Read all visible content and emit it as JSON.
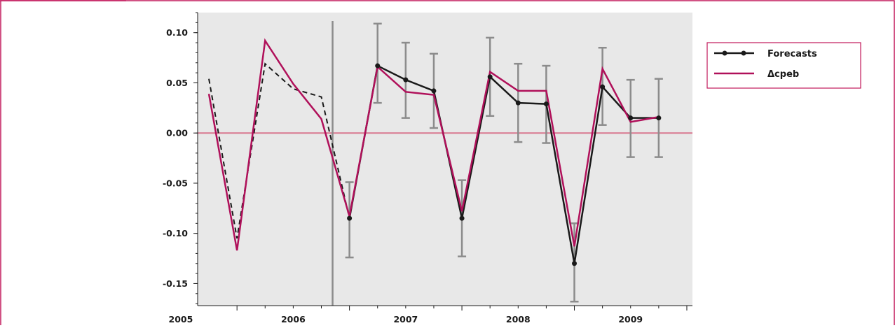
{
  "colors": {
    "frame": "#c2185b",
    "plot_bg": "#e8e8e8",
    "zero_line": "#d9788f",
    "forecast": "#1a1a1a",
    "actual": "#b0105a",
    "error_bar": "#8c8c8c"
  },
  "chart_data": {
    "type": "line",
    "xlim": [
      2004.65,
      2009.05
    ],
    "ylim": [
      -0.172,
      0.12
    ],
    "x_ticks": [
      {
        "value": 2005,
        "label": "2005"
      },
      {
        "value": 2006,
        "label": "2006"
      },
      {
        "value": 2007,
        "label": "2007"
      },
      {
        "value": 2008,
        "label": "2008"
      },
      {
        "value": 2009,
        "label": "2009"
      }
    ],
    "y_ticks": [
      {
        "value": 0.1,
        "label": "0.10"
      },
      {
        "value": 0.05,
        "label": "0.05"
      },
      {
        "value": 0.0,
        "label": "0.00"
      },
      {
        "value": -0.05,
        "label": "-0.05"
      },
      {
        "value": -0.1,
        "label": "-0.10"
      },
      {
        "value": -0.15,
        "label": "-0.15"
      }
    ],
    "forecast_start": 2005.85,
    "grid": false,
    "legend_position": "top-right",
    "series": [
      {
        "name": "Forecasts",
        "style": "line-markers",
        "x": [
          2006.0,
          2006.25,
          2006.5,
          2006.75,
          2007.0,
          2007.25,
          2007.5,
          2007.75,
          2008.0,
          2008.25,
          2008.5,
          2008.75
        ],
        "y": [
          -0.085,
          0.067,
          0.053,
          0.042,
          -0.085,
          0.056,
          0.03,
          0.029,
          -0.13,
          0.046,
          0.015,
          0.015
        ]
      },
      {
        "name": "Δcpeb",
        "style": "line",
        "x": [
          2004.75,
          2005.0,
          2005.25,
          2005.5,
          2005.75,
          2006.0,
          2006.25,
          2006.5,
          2006.75,
          2007.0,
          2007.25,
          2007.5,
          2007.75,
          2008.0,
          2008.25,
          2008.5,
          2008.75
        ],
        "y": [
          0.039,
          -0.117,
          0.092,
          0.049,
          0.014,
          -0.083,
          0.066,
          0.041,
          0.038,
          -0.078,
          0.061,
          0.042,
          0.042,
          -0.113,
          0.064,
          0.011,
          0.016
        ]
      },
      {
        "style": "dashed",
        "x": [
          2004.75,
          2005.0,
          2005.25,
          2005.5,
          2005.75,
          2006.0
        ],
        "y": [
          0.054,
          -0.105,
          0.069,
          0.044,
          0.036,
          -0.085
        ]
      }
    ],
    "error_bars": [
      {
        "x": 2006.0,
        "low": -0.124,
        "high": -0.049
      },
      {
        "x": 2006.25,
        "low": 0.03,
        "high": 0.109
      },
      {
        "x": 2006.5,
        "low": 0.015,
        "high": 0.09
      },
      {
        "x": 2006.75,
        "low": 0.005,
        "high": 0.079
      },
      {
        "x": 2007.0,
        "low": -0.123,
        "high": -0.047
      },
      {
        "x": 2007.25,
        "low": 0.017,
        "high": 0.095
      },
      {
        "x": 2007.5,
        "low": -0.009,
        "high": 0.069
      },
      {
        "x": 2007.75,
        "low": -0.01,
        "high": 0.067
      },
      {
        "x": 2008.0,
        "low": -0.168,
        "high": -0.09
      },
      {
        "x": 2008.25,
        "low": 0.008,
        "high": 0.085
      },
      {
        "x": 2008.5,
        "low": -0.024,
        "high": 0.053
      },
      {
        "x": 2008.75,
        "low": -0.024,
        "high": 0.054
      }
    ]
  }
}
